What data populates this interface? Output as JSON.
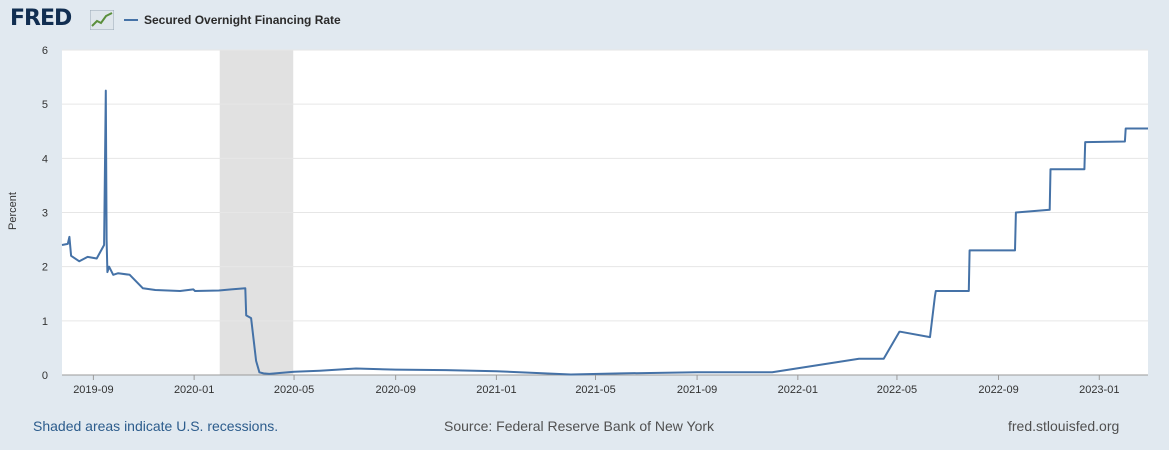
{
  "header": {
    "logo_text": "FRED",
    "series_name": "Secured Overnight Financing Rate",
    "series_color": "#4572a7"
  },
  "footer": {
    "recession_note": "Shaded areas indicate U.S. recessions.",
    "source": "Source: Federal Reserve Bank of New York",
    "site": "fred.stlouisfed.org"
  },
  "chart_data": {
    "type": "line",
    "title": "",
    "xlabel": "",
    "ylabel": "Percent",
    "ylim": [
      0,
      6
    ],
    "yticks": [
      0,
      1,
      2,
      3,
      4,
      5,
      6
    ],
    "xtick_labels": [
      "2019-09",
      "2020-01",
      "2020-05",
      "2020-09",
      "2021-01",
      "2021-05",
      "2021-09",
      "2022-01",
      "2022-05",
      "2022-09",
      "2023-01"
    ],
    "xrange": [
      "2019-07-25",
      "2023-03-01"
    ],
    "grid": true,
    "recession_shading": [
      {
        "start": "2020-02-01",
        "end": "2020-04-30"
      }
    ],
    "series": [
      {
        "name": "Secured Overnight Financing Rate",
        "color": "#4572a7",
        "x": [
          "2019-07-25",
          "2019-08-01",
          "2019-08-03",
          "2019-08-05",
          "2019-08-15",
          "2019-08-25",
          "2019-09-05",
          "2019-09-14",
          "2019-09-16",
          "2019-09-17",
          "2019-09-18",
          "2019-09-20",
          "2019-09-25",
          "2019-10-01",
          "2019-10-15",
          "2019-10-31",
          "2019-11-15",
          "2019-12-15",
          "2019-12-31",
          "2020-01-02",
          "2020-01-31",
          "2020-02-15",
          "2020-03-03",
          "2020-03-04",
          "2020-03-10",
          "2020-03-16",
          "2020-03-20",
          "2020-03-25",
          "2020-04-01",
          "2020-05-01",
          "2020-06-01",
          "2020-07-15",
          "2020-09-01",
          "2020-11-01",
          "2021-01-01",
          "2021-03-01",
          "2021-04-01",
          "2021-06-01",
          "2021-09-01",
          "2021-12-01",
          "2022-03-16",
          "2022-03-18",
          "2022-04-15",
          "2022-05-04",
          "2022-05-05",
          "2022-06-10",
          "2022-06-16",
          "2022-06-17",
          "2022-07-27",
          "2022-07-28",
          "2022-09-21",
          "2022-09-22",
          "2022-11-02",
          "2022-11-03",
          "2022-12-14",
          "2022-12-15",
          "2023-02-01",
          "2023-02-02",
          "2023-03-01"
        ],
        "values": [
          2.4,
          2.42,
          2.55,
          2.2,
          2.1,
          2.18,
          2.15,
          2.4,
          5.25,
          2.5,
          1.9,
          2.0,
          1.85,
          1.88,
          1.85,
          1.6,
          1.57,
          1.55,
          1.58,
          1.55,
          1.56,
          1.58,
          1.6,
          1.1,
          1.05,
          0.26,
          0.05,
          0.03,
          0.02,
          0.06,
          0.08,
          0.12,
          0.1,
          0.09,
          0.07,
          0.03,
          0.01,
          0.03,
          0.05,
          0.05,
          0.3,
          0.3,
          0.3,
          0.8,
          0.8,
          0.7,
          1.45,
          1.55,
          1.55,
          2.3,
          2.3,
          3.0,
          3.05,
          3.8,
          3.8,
          4.3,
          4.31,
          4.55,
          4.55
        ]
      }
    ]
  }
}
